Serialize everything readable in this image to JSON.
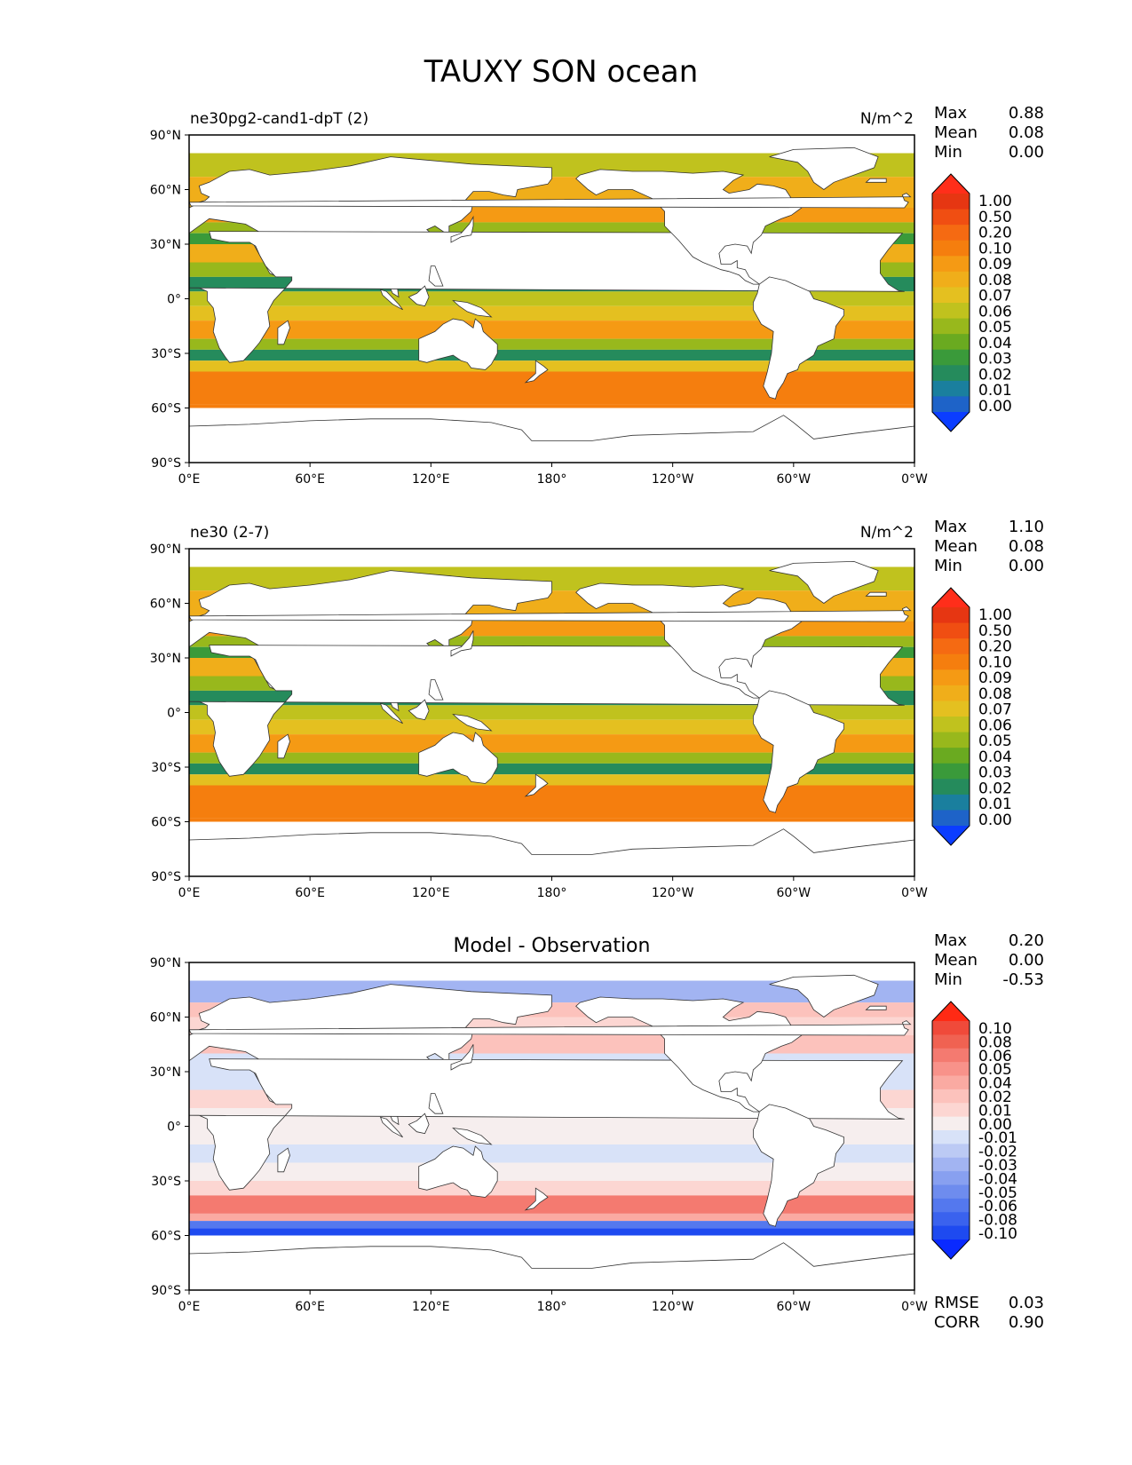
{
  "figure": {
    "title": "TAUXY SON ocean"
  },
  "chart_data": [
    {
      "type": "heatmap",
      "panel": "test",
      "left_title": "ne30pg2-cand1-dpT (2)",
      "center_title": "",
      "units": "N/m^2",
      "stats": [
        {
          "label": "Max",
          "value": "0.88"
        },
        {
          "label": "Mean",
          "value": "0.08"
        },
        {
          "label": "Min",
          "value": "0.00"
        }
      ],
      "colorbar": {
        "levels": [
          "0.00",
          "0.01",
          "0.02",
          "0.03",
          "0.04",
          "0.05",
          "0.06",
          "0.07",
          "0.08",
          "0.09",
          "0.10",
          "0.20",
          "0.50",
          "1.00"
        ],
        "colors": [
          "#0b3dff",
          "#1e63c8",
          "#1a7f9e",
          "#258b5c",
          "#3a9a3a",
          "#6aaa20",
          "#98b81c",
          "#c0c21e",
          "#e4c020",
          "#f0ae1a",
          "#f59a14",
          "#f57e0e",
          "#f56a12",
          "#f04e12",
          "#e63612",
          "#ff2e1a"
        ]
      },
      "stats_footer": [],
      "xticks": [
        "0°E",
        "60°E",
        "120°E",
        "180°",
        "120°W",
        "60°W",
        "0°W"
      ],
      "yticks": [
        "90°N",
        "60°N",
        "30°N",
        "0°",
        "30°S",
        "60°S",
        "90°S"
      ],
      "x_range": [
        0,
        360
      ],
      "y_range": [
        -90,
        90
      ]
    },
    {
      "type": "heatmap",
      "panel": "reference",
      "left_title": "ne30 (2-7)",
      "center_title": "",
      "units": "N/m^2",
      "stats": [
        {
          "label": "Max",
          "value": "1.10"
        },
        {
          "label": "Mean",
          "value": "0.08"
        },
        {
          "label": "Min",
          "value": "0.00"
        }
      ],
      "colorbar": {
        "levels": [
          "0.00",
          "0.01",
          "0.02",
          "0.03",
          "0.04",
          "0.05",
          "0.06",
          "0.07",
          "0.08",
          "0.09",
          "0.10",
          "0.20",
          "0.50",
          "1.00"
        ],
        "colors": [
          "#0b3dff",
          "#1e63c8",
          "#1a7f9e",
          "#258b5c",
          "#3a9a3a",
          "#6aaa20",
          "#98b81c",
          "#c0c21e",
          "#e4c020",
          "#f0ae1a",
          "#f59a14",
          "#f57e0e",
          "#f56a12",
          "#f04e12",
          "#e63612",
          "#ff2e1a"
        ]
      },
      "stats_footer": [],
      "xticks": [
        "0°E",
        "60°E",
        "120°E",
        "180°",
        "120°W",
        "60°W",
        "0°W"
      ],
      "yticks": [
        "90°N",
        "60°N",
        "30°N",
        "0°",
        "30°S",
        "60°S",
        "90°S"
      ],
      "x_range": [
        0,
        360
      ],
      "y_range": [
        -90,
        90
      ]
    },
    {
      "type": "heatmap",
      "panel": "diff",
      "left_title": "",
      "center_title": "Model - Observation",
      "units": "",
      "stats": [
        {
          "label": "Max",
          "value": "0.20"
        },
        {
          "label": "Mean",
          "value": "0.00"
        },
        {
          "label": "Min",
          "value": "-0.53"
        }
      ],
      "colorbar": {
        "levels": [
          "-0.10",
          "-0.08",
          "-0.06",
          "-0.05",
          "-0.04",
          "-0.03",
          "-0.02",
          "-0.01",
          "0.00",
          "0.01",
          "0.02",
          "0.04",
          "0.05",
          "0.06",
          "0.08",
          "0.10"
        ],
        "colors": [
          "#0a2aff",
          "#1e4af0",
          "#3a62ee",
          "#5478ee",
          "#6e8cee",
          "#88a0f0",
          "#a2b4f2",
          "#bccaf4",
          "#d8e2f8",
          "#f6eeee",
          "#fcd6d2",
          "#fcc2bc",
          "#faaaa2",
          "#f8928a",
          "#f47a70",
          "#f06252",
          "#f04a3a",
          "#ff2a14"
        ]
      },
      "stats_footer": [
        {
          "label": "RMSE",
          "value": "0.03"
        },
        {
          "label": "CORR",
          "value": "0.90"
        }
      ],
      "xticks": [
        "0°E",
        "60°E",
        "120°E",
        "180°",
        "120°W",
        "60°W",
        "0°W"
      ],
      "yticks": [
        "90°N",
        "60°N",
        "30°N",
        "0°",
        "30°S",
        "60°S",
        "90°S"
      ],
      "x_range": [
        0,
        360
      ],
      "y_range": [
        -90,
        90
      ]
    }
  ]
}
